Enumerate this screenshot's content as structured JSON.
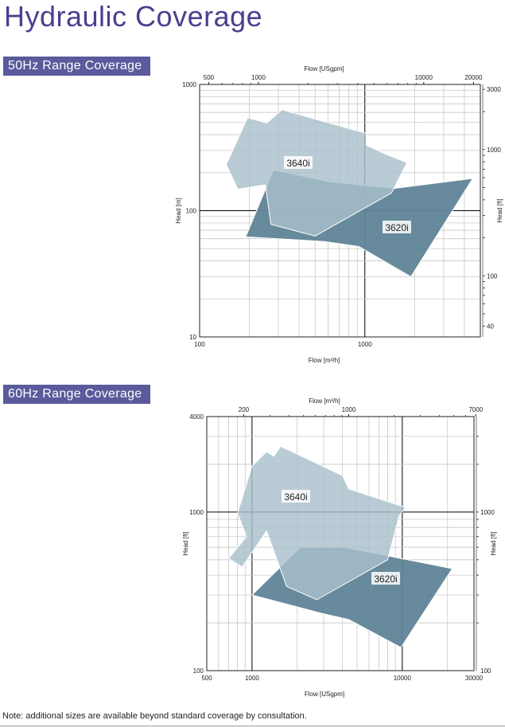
{
  "page": {
    "title": "Hydraulic Coverage",
    "note": "Note: additional sizes are available beyond standard coverage by consultation."
  },
  "colors": {
    "title": "#4b3f8f",
    "section_bg": "#5a5a9c",
    "region_3640i": "#a9bfcc",
    "region_3620i": "#5f8497",
    "grid_minor": "#c8c8c8",
    "grid_major": "#000000"
  },
  "chart_data": [
    {
      "type": "area",
      "section_label": "50Hz Range Coverage",
      "scale": "log-log",
      "grid": true,
      "x_axis": {
        "label": "Flow [m³/h]",
        "range": [
          100,
          5000
        ],
        "ticks": [
          100,
          1000
        ]
      },
      "y_axis": {
        "label": "Head [m]",
        "range": [
          10,
          1000
        ],
        "ticks": [
          10,
          100,
          1000
        ]
      },
      "top_axis": {
        "label": "Flow [USgpm]",
        "ticks": [
          500,
          1000,
          10000,
          20000
        ]
      },
      "right_axis": {
        "label": "Head [ft]",
        "ticks": [
          40,
          100,
          1000,
          3000
        ]
      },
      "series": [
        {
          "name": "3620i",
          "polygon": [
            [
              280,
              210
            ],
            [
              600,
              170
            ],
            [
              1500,
              150
            ],
            [
              4500,
              180
            ],
            [
              1900,
              30
            ],
            [
              920,
              52
            ],
            [
              570,
              57
            ],
            [
              190,
              62
            ]
          ]
        },
        {
          "name": "3640i",
          "polygon": [
            [
              145,
              232
            ],
            [
              195,
              545
            ],
            [
              255,
              495
            ],
            [
              315,
              630
            ],
            [
              1020,
              410
            ],
            [
              1020,
              330
            ],
            [
              1300,
              285
            ],
            [
              1800,
              240
            ],
            [
              1450,
              138
            ],
            [
              500,
              63
            ],
            [
              270,
              78
            ],
            [
              250,
              160
            ],
            [
              170,
              148
            ]
          ]
        }
      ]
    },
    {
      "type": "area",
      "section_label": "60Hz Range Coverage",
      "scale": "log-log",
      "grid": true,
      "x_axis": {
        "label": "Flow [USgpm]",
        "range": [
          500,
          30000
        ],
        "ticks": [
          500,
          1000,
          10000,
          30000
        ]
      },
      "y_axis": {
        "label": "Head [ft]",
        "range": [
          100,
          4000
        ],
        "ticks": [
          100,
          1000,
          4000
        ]
      },
      "top_axis": {
        "label": "Flow [m³/h]",
        "ticks": [
          200,
          1000,
          7000
        ]
      },
      "right_axis": {
        "label": "Head [ft]",
        "ticks": [
          100,
          1000
        ]
      },
      "series": [
        {
          "name": "3620i",
          "polygon": [
            [
              1000,
              300
            ],
            [
              2900,
              230
            ],
            [
              4400,
              210
            ],
            [
              9800,
              140
            ],
            [
              21500,
              440
            ],
            [
              8800,
              520
            ],
            [
              4100,
              600
            ],
            [
              2100,
              600
            ]
          ]
        },
        {
          "name": "3640i",
          "polygon": [
            [
              700,
              510
            ],
            [
              920,
              700
            ],
            [
              800,
              980
            ],
            [
              1000,
              1950
            ],
            [
              1250,
              2400
            ],
            [
              1400,
              2250
            ],
            [
              1550,
              2600
            ],
            [
              4000,
              1700
            ],
            [
              4400,
              1400
            ],
            [
              10500,
              1070
            ],
            [
              9500,
              940
            ],
            [
              8000,
              500
            ],
            [
              2700,
              280
            ],
            [
              1700,
              340
            ],
            [
              1250,
              760
            ],
            [
              860,
              450
            ]
          ]
        }
      ]
    }
  ]
}
